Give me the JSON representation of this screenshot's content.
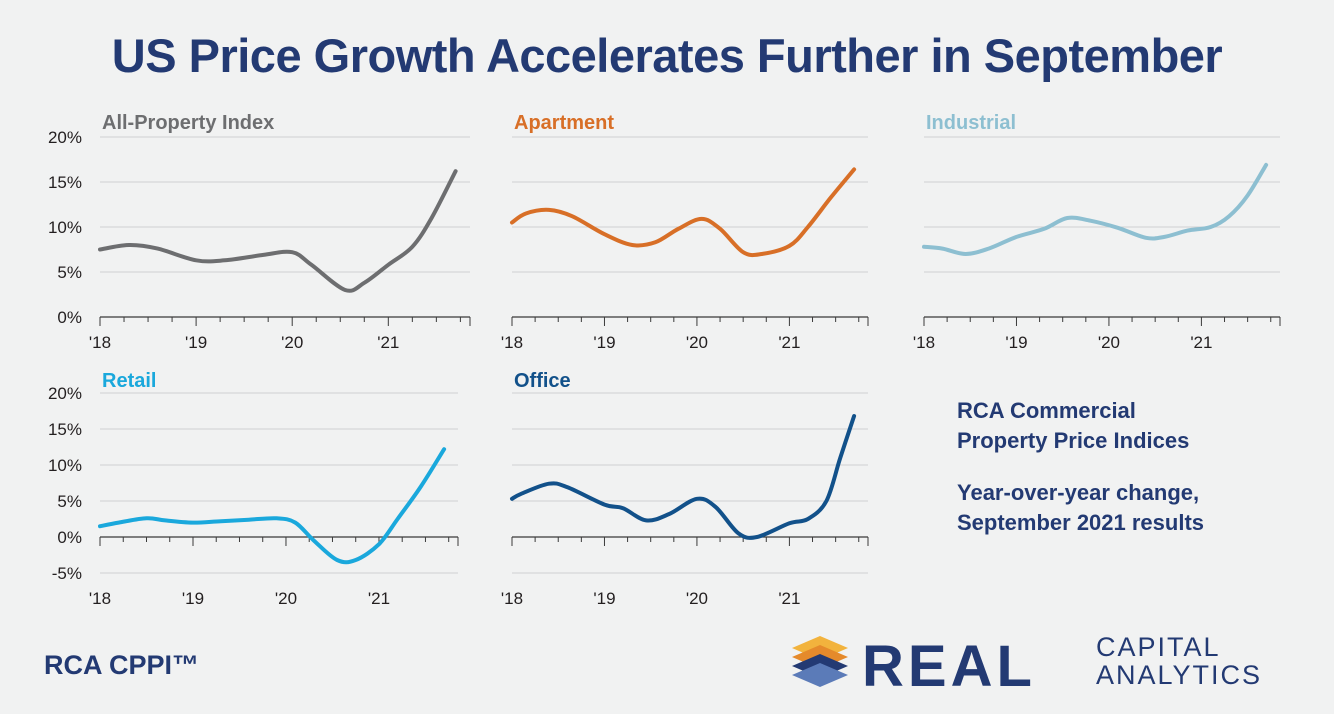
{
  "title": "US Price Growth Accelerates Further in September",
  "notes": {
    "line1": "RCA Commercial",
    "line2": "Property Price Indices",
    "line3": "Year-over-year change,",
    "line4": "September 2021 results"
  },
  "footer": {
    "label": "RCA CPPI™"
  },
  "logo": {
    "word1": "REAL",
    "word2": "CAPITAL",
    "word3": "ANALYTICS"
  },
  "colors": {
    "title": "#233a73",
    "grid": "#cfd0d1",
    "axis": "#3a3a3a",
    "logo_gold": "#f2b33d",
    "logo_navy": "#233a73"
  },
  "chart_data": [
    {
      "type": "line",
      "title": "All-Property Index",
      "color": "#6d6e70",
      "x_ticks": [
        "'18",
        "'19",
        "'20",
        "'21"
      ],
      "y_ticks": [
        "20%",
        "15%",
        "10%",
        "5%",
        "0%"
      ],
      "ylim": [
        0,
        20
      ],
      "x": [
        2018.0,
        2018.3,
        2018.6,
        2019.0,
        2019.3,
        2019.7,
        2020.0,
        2020.2,
        2020.55,
        2020.75,
        2021.0,
        2021.25,
        2021.45,
        2021.7
      ],
      "values": [
        7.5,
        8.0,
        7.6,
        6.3,
        6.3,
        6.9,
        7.2,
        5.8,
        3.0,
        3.8,
        5.8,
        7.8,
        11.0,
        16.2
      ]
    },
    {
      "type": "line",
      "title": "Apartment",
      "color": "#d86f27",
      "x_ticks": [
        "'18",
        "'19",
        "'20",
        "'21"
      ],
      "y_ticks": [
        "20%",
        "15%",
        "10%",
        "5%",
        "0%"
      ],
      "ylim": [
        0,
        20
      ],
      "x": [
        2018.0,
        2018.15,
        2018.4,
        2018.65,
        2019.0,
        2019.3,
        2019.55,
        2019.8,
        2020.05,
        2020.25,
        2020.5,
        2020.7,
        2021.0,
        2021.2,
        2021.45,
        2021.7
      ],
      "values": [
        10.5,
        11.5,
        11.9,
        11.2,
        9.2,
        8.0,
        8.3,
        9.8,
        10.9,
        9.8,
        7.2,
        7.0,
        7.9,
        10.0,
        13.3,
        16.4
      ]
    },
    {
      "type": "line",
      "title": "Industrial",
      "color": "#8dbfd1",
      "x_ticks": [
        "'18",
        "'19",
        "'20",
        "'21"
      ],
      "y_ticks": [
        "20%",
        "15%",
        "10%",
        "5%",
        "0%"
      ],
      "ylim": [
        0,
        20
      ],
      "x": [
        2018.0,
        2018.2,
        2018.45,
        2018.7,
        2019.0,
        2019.3,
        2019.55,
        2019.8,
        2020.1,
        2020.4,
        2020.6,
        2020.85,
        2021.1,
        2021.3,
        2021.5,
        2021.7
      ],
      "values": [
        7.8,
        7.6,
        7.0,
        7.6,
        8.9,
        9.8,
        11.0,
        10.7,
        9.9,
        8.8,
        8.9,
        9.6,
        10.0,
        11.2,
        13.5,
        16.9
      ]
    },
    {
      "type": "line",
      "title": "Retail",
      "color": "#1aa8dc",
      "x_ticks": [
        "'18",
        "'19",
        "'20",
        "'21"
      ],
      "y_ticks": [
        "20%",
        "15%",
        "10%",
        "5%",
        "0%",
        "-5%"
      ],
      "ylim": [
        -5,
        20
      ],
      "x": [
        2018.0,
        2018.2,
        2018.5,
        2018.7,
        2019.0,
        2019.3,
        2019.6,
        2019.9,
        2020.1,
        2020.3,
        2020.55,
        2020.75,
        2021.0,
        2021.2,
        2021.45,
        2021.7
      ],
      "values": [
        1.5,
        2.0,
        2.6,
        2.3,
        2.0,
        2.2,
        2.4,
        2.6,
        2.0,
        -0.5,
        -3.2,
        -3.2,
        -1.0,
        2.5,
        7.0,
        12.2
      ]
    },
    {
      "type": "line",
      "title": "Office",
      "color": "#12518a",
      "x_ticks": [
        "'18",
        "'19",
        "'20",
        "'21"
      ],
      "y_ticks": [
        "20%",
        "15%",
        "10%",
        "5%",
        "0%",
        "-5%"
      ],
      "ylim": [
        -5,
        20
      ],
      "x": [
        2018.0,
        2018.1,
        2018.4,
        2018.6,
        2019.0,
        2019.2,
        2019.45,
        2019.7,
        2020.0,
        2020.2,
        2020.45,
        2020.65,
        2021.0,
        2021.2,
        2021.4,
        2021.55,
        2021.7
      ],
      "values": [
        5.3,
        6.0,
        7.4,
        6.9,
        4.5,
        4.0,
        2.3,
        3.2,
        5.3,
        4.2,
        0.5,
        0.0,
        1.9,
        2.5,
        5.0,
        11.0,
        16.8
      ]
    }
  ]
}
